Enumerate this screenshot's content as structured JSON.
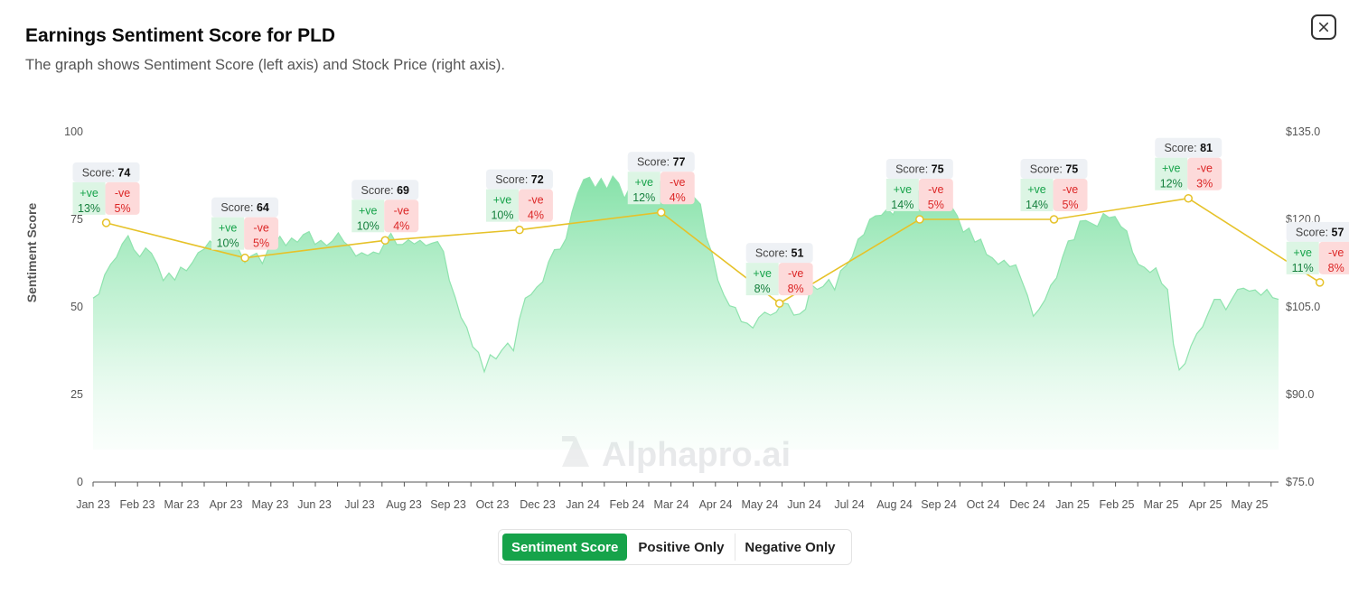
{
  "header": {
    "title": "Earnings Sentiment Score for PLD",
    "subtitle": "The graph shows Sentiment Score (left axis) and Stock Price (right axis).",
    "close_icon": "close-icon"
  },
  "watermark": "Alphapro.ai",
  "toggle": {
    "options": [
      "Sentiment Score",
      "Positive Only",
      "Negative Only"
    ],
    "active": "Sentiment Score"
  },
  "colors": {
    "score_line": "#e6c229",
    "price_area": "#86e3a8",
    "positive": "#16a34a",
    "negative": "#dc2626",
    "toggle_active": "#16a34a"
  },
  "chart_data": {
    "type": "line",
    "ylabel": "Sentiment Score",
    "y_left": {
      "min": 0,
      "max": 100,
      "ticks": [
        0,
        25,
        50,
        75,
        100
      ]
    },
    "y_right": {
      "min": 75,
      "max": 135,
      "ticks": [
        "$75.0",
        "$90.0",
        "$105.0",
        "$120.0",
        "$135.0"
      ]
    },
    "x_ticks": [
      "Jan 23",
      "Feb 23",
      "Mar 23",
      "Apr 23",
      "May 23",
      "Jun 23",
      "Jul 23",
      "Aug 23",
      "Sep 23",
      "Oct 23",
      "Dec 23",
      "Jan 24",
      "Feb 24",
      "Mar 24",
      "Apr 24",
      "May 24",
      "Jun 24",
      "Jul 24",
      "Aug 24",
      "Sep 24",
      "Oct 24",
      "Dec 24",
      "Jan 25",
      "Feb 25",
      "Mar 25",
      "Apr 25",
      "May 25"
    ],
    "score_label": "Score:",
    "pos_label": "+ve",
    "neg_label": "-ve",
    "sentiment_series": [
      {
        "date": "2023-01-10",
        "score": 74,
        "positive": "13%",
        "negative": "5%"
      },
      {
        "date": "2023-04-15",
        "score": 64,
        "positive": "10%",
        "negative": "5%"
      },
      {
        "date": "2023-07-20",
        "score": 69,
        "positive": "10%",
        "negative": "4%"
      },
      {
        "date": "2023-10-20",
        "score": 72,
        "positive": "10%",
        "negative": "4%"
      },
      {
        "date": "2024-01-25",
        "score": 77,
        "positive": "12%",
        "negative": "4%"
      },
      {
        "date": "2024-04-15",
        "score": 51,
        "positive": "8%",
        "negative": "8%"
      },
      {
        "date": "2024-07-20",
        "score": 75,
        "positive": "14%",
        "negative": "5%"
      },
      {
        "date": "2024-10-20",
        "score": 75,
        "positive": "14%",
        "negative": "5%"
      },
      {
        "date": "2025-01-20",
        "score": 81,
        "positive": "12%",
        "negative": "3%"
      },
      {
        "date": "2025-04-20",
        "score": 57,
        "positive": "11%",
        "negative": "8%"
      }
    ],
    "price_series": {
      "name": "Stock Price",
      "values": [
        [
          0,
          106.5
        ],
        [
          0.015,
          107.2
        ],
        [
          0.03,
          110.5
        ],
        [
          0.045,
          112.3
        ],
        [
          0.06,
          113.5
        ],
        [
          0.075,
          115.8
        ],
        [
          0.09,
          117.2
        ],
        [
          0.105,
          114.8
        ],
        [
          0.12,
          113.6
        ],
        [
          0.135,
          115.1
        ],
        [
          0.15,
          114.2
        ],
        [
          0.165,
          112.3
        ],
        [
          0.18,
          109.5
        ],
        [
          0.195,
          110.8
        ],
        [
          0.21,
          109.6
        ],
        [
          0.225,
          111.8
        ],
        [
          0.24,
          111.2
        ],
        [
          0.255,
          112.6
        ],
        [
          0.27,
          114.3
        ],
        [
          0.285,
          114.9
        ],
        [
          0.3,
          116.3
        ],
        [
          0.315,
          115.5
        ],
        [
          0.33,
          117.8
        ],
        [
          0.345,
          116.9
        ],
        [
          0.36,
          116.2
        ],
        [
          0.375,
          114.7
        ],
        [
          0.39,
          112.6
        ],
        [
          0.405,
          113.7
        ],
        [
          0.42,
          114.2
        ],
        [
          0.435,
          112.4
        ],
        [
          0.45,
          114.9
        ],
        [
          0.465,
          115.7
        ],
        [
          0.48,
          117.1
        ],
        [
          0.495,
          115.5
        ],
        [
          0.51,
          116.8
        ],
        [
          0.525,
          116.1
        ],
        [
          0.54,
          117.4
        ],
        [
          0.555,
          117.9
        ],
        [
          0.57,
          115.7
        ],
        [
          0.585,
          116.4
        ],
        [
          0.6,
          115.5
        ],
        [
          0.615,
          116.3
        ],
        [
          0.63,
          117.7
        ],
        [
          0.645,
          116.1
        ],
        [
          0.66,
          115.3
        ],
        [
          0.675,
          113.7
        ],
        [
          0.69,
          114.3
        ],
        [
          0.705,
          113.8
        ],
        [
          0.72,
          114.4
        ],
        [
          0.735,
          114.1
        ],
        [
          0.75,
          116.1
        ],
        [
          0.765,
          117.6
        ],
        [
          0.78,
          115.7
        ],
        [
          0.795,
          115.7
        ],
        [
          0.81,
          116.5
        ],
        [
          0.825,
          115.8
        ],
        [
          0.84,
          116.4
        ],
        [
          0.855,
          115.5
        ],
        [
          0.87,
          115.9
        ],
        [
          0.885,
          116.2
        ],
        [
          0.9,
          114.5
        ],
        [
          0.915,
          109.6
        ],
        [
          0.93,
          106.7
        ],
        [
          0.945,
          103.2
        ],
        [
          0.96,
          101.5
        ],
        [
          0.975,
          98.2
        ],
        [
          0.99,
          97.2
        ],
        [
          1.005,
          93.9
        ],
        [
          1.02,
          96.8
        ],
        [
          1.035,
          96.1
        ],
        [
          1.05,
          97.6
        ],
        [
          1.065,
          98.8
        ],
        [
          1.08,
          97.5
        ],
        [
          1.095,
          102.9
        ],
        [
          1.11,
          106.5
        ],
        [
          1.125,
          107.1
        ],
        [
          1.14,
          108.4
        ],
        [
          1.155,
          109.3
        ],
        [
          1.17,
          112.7
        ],
        [
          1.185,
          114.8
        ],
        [
          1.2,
          114.9
        ],
        [
          1.215,
          116.7
        ],
        [
          1.23,
          121.2
        ],
        [
          1.245,
          124.5
        ],
        [
          1.26,
          126.8
        ],
        [
          1.275,
          127.2
        ],
        [
          1.29,
          125.4
        ],
        [
          1.305,
          127.0
        ],
        [
          1.32,
          125.2
        ],
        [
          1.335,
          127.4
        ],
        [
          1.35,
          126.2
        ],
        [
          1.365,
          123.6
        ],
        [
          1.38,
          125.7
        ],
        [
          1.395,
          126.9
        ],
        [
          1.41,
          125.4
        ],
        [
          1.425,
          126.0
        ],
        [
          1.44,
          126.0
        ],
        [
          1.455,
          126.6
        ],
        [
          1.47,
          125.4
        ],
        [
          1.485,
          125.3
        ],
        [
          1.5,
          126.9
        ],
        [
          1.515,
          124.6
        ],
        [
          1.53,
          124.9
        ],
        [
          1.545,
          123.7
        ],
        [
          1.56,
          122.6
        ],
        [
          1.575,
          116.9
        ],
        [
          1.59,
          114.2
        ],
        [
          1.605,
          109.6
        ],
        [
          1.62,
          107.1
        ],
        [
          1.635,
          105.2
        ],
        [
          1.65,
          104.9
        ],
        [
          1.665,
          102.5
        ],
        [
          1.68,
          102.2
        ],
        [
          1.695,
          101.4
        ],
        [
          1.71,
          103.2
        ],
        [
          1.725,
          104.1
        ],
        [
          1.74,
          103.6
        ],
        [
          1.755,
          104.1
        ],
        [
          1.77,
          105.7
        ],
        [
          1.785,
          105.5
        ],
        [
          1.8,
          103.6
        ],
        [
          1.815,
          103.8
        ],
        [
          1.83,
          104.6
        ],
        [
          1.845,
          108.8
        ],
        [
          1.86,
          108.0
        ],
        [
          1.875,
          108.5
        ],
        [
          1.89,
          109.7
        ],
        [
          1.905,
          107.9
        ],
        [
          1.92,
          111.2
        ],
        [
          1.935,
          112.1
        ],
        [
          1.95,
          113.6
        ],
        [
          1.965,
          116.6
        ],
        [
          1.98,
          117.4
        ],
        [
          1.995,
          120.0
        ],
        [
          2.01,
          120.6
        ],
        [
          2.025,
          120.7
        ],
        [
          2.04,
          121.8
        ],
        [
          2.055,
          120.8
        ],
        [
          2.07,
          123.1
        ],
        [
          2.085,
          123.6
        ],
        [
          2.1,
          123.1
        ],
        [
          2.115,
          124.7
        ],
        [
          2.13,
          125.1
        ],
        [
          2.145,
          124.8
        ],
        [
          2.16,
          124.4
        ],
        [
          2.175,
          123.0
        ],
        [
          2.19,
          124.1
        ],
        [
          2.205,
          122.2
        ],
        [
          2.22,
          120.6
        ],
        [
          2.235,
          117.8
        ],
        [
          2.25,
          118.5
        ],
        [
          2.265,
          116.1
        ],
        [
          2.28,
          116.6
        ],
        [
          2.295,
          114.0
        ],
        [
          2.31,
          113.4
        ],
        [
          2.325,
          112.3
        ],
        [
          2.34,
          113.0
        ],
        [
          2.355,
          111.9
        ],
        [
          2.37,
          112.2
        ],
        [
          2.385,
          109.6
        ],
        [
          2.4,
          107.0
        ],
        [
          2.415,
          103.4
        ],
        [
          2.43,
          104.6
        ],
        [
          2.445,
          106.2
        ],
        [
          2.46,
          108.7
        ],
        [
          2.475,
          110.0
        ],
        [
          2.49,
          113.5
        ],
        [
          2.505,
          116.3
        ],
        [
          2.52,
          116.5
        ],
        [
          2.535,
          119.7
        ],
        [
          2.55,
          119.8
        ],
        [
          2.565,
          119.3
        ],
        [
          2.58,
          118.8
        ],
        [
          2.595,
          121.0
        ],
        [
          2.61,
          120.3
        ],
        [
          2.625,
          120.5
        ],
        [
          2.64,
          118.8
        ],
        [
          2.655,
          118.0
        ],
        [
          2.67,
          114.4
        ],
        [
          2.685,
          112.3
        ],
        [
          2.7,
          111.8
        ],
        [
          2.715,
          110.9
        ],
        [
          2.73,
          111.7
        ],
        [
          2.745,
          109.0
        ],
        [
          2.76,
          108.0
        ],
        [
          2.775,
          98.6
        ],
        [
          2.79,
          94.2
        ],
        [
          2.805,
          95.3
        ],
        [
          2.82,
          98.3
        ],
        [
          2.835,
          100.4
        ],
        [
          2.85,
          101.6
        ],
        [
          2.865,
          104.0
        ],
        [
          2.88,
          106.3
        ],
        [
          2.895,
          106.3
        ],
        [
          2.91,
          104.5
        ],
        [
          2.925,
          106.3
        ],
        [
          2.94,
          108.0
        ],
        [
          2.955,
          108.2
        ],
        [
          2.97,
          107.7
        ],
        [
          2.985,
          107.9
        ],
        [
          3.0,
          107.0
        ],
        [
          3.015,
          108.0
        ],
        [
          3.03,
          106.6
        ],
        [
          3.045,
          106.3
        ]
      ]
    },
    "price_series_x_note": ""
  }
}
